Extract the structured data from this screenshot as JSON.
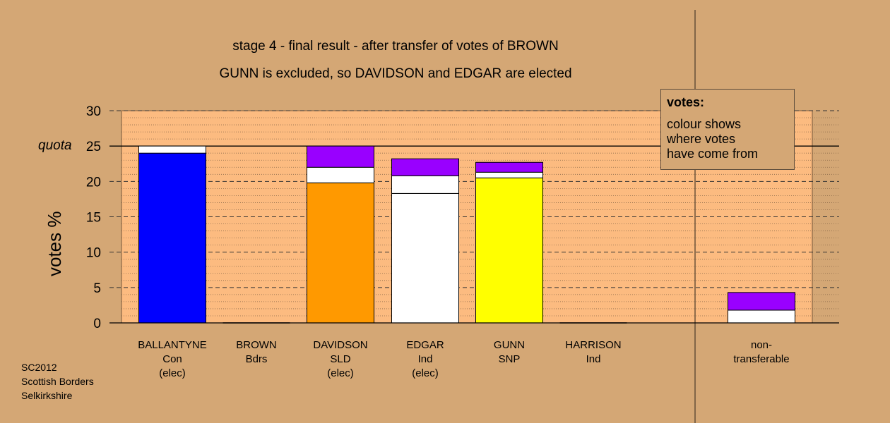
{
  "titles": {
    "line1": "stage 4 - final result - after transfer of votes of BROWN",
    "line2": "GUNN is excluded, so DAVIDSON and EDGAR are elected"
  },
  "legend": {
    "heading": "votes:",
    "text_lines": [
      "colour shows",
      "where votes",
      "have come from"
    ]
  },
  "source": [
    "SC2012",
    "Scottish Borders",
    "Selkirkshire"
  ],
  "colors": {
    "background": "#D4A775",
    "plot_background": "#FCBB80",
    "con": "#0000FF",
    "sld": "#FF9900",
    "ind": "#FFFFFF",
    "snp": "#FFFF00",
    "transfer_previous": "#FFFFFF",
    "transfer_brown": "#9900FF"
  },
  "chart_data": {
    "type": "bar",
    "stacked": true,
    "ylabel": "votes %",
    "ylim": [
      0,
      30
    ],
    "yticks": [
      0,
      5,
      10,
      15,
      20,
      25,
      30
    ],
    "quota": {
      "value": 25,
      "label": "quota"
    },
    "categories": [
      {
        "lines": [
          "BALLANTYNE",
          "Con",
          "(elec)"
        ]
      },
      {
        "lines": [
          "BROWN",
          "Bdrs"
        ]
      },
      {
        "lines": [
          "DAVIDSON",
          "SLD",
          "(elec)"
        ]
      },
      {
        "lines": [
          "EDGAR",
          "Ind",
          "(elec)"
        ]
      },
      {
        "lines": [
          "GUNN",
          "SNP"
        ]
      },
      {
        "lines": [
          "HARRISON",
          "Ind"
        ]
      },
      {
        "lines": [
          "non-",
          "transferable"
        ]
      }
    ],
    "bars": [
      {
        "category": "BALLANTYNE",
        "segments": [
          {
            "value": 24.0,
            "color": "#0000FF"
          },
          {
            "value": 1.0,
            "color": "#FFFFFF"
          }
        ]
      },
      {
        "category": "BROWN",
        "segments": []
      },
      {
        "category": "DAVIDSON",
        "segments": [
          {
            "value": 19.8,
            "color": "#FF9900"
          },
          {
            "value": 2.2,
            "color": "#FFFFFF"
          },
          {
            "value": 3.0,
            "color": "#9900FF"
          }
        ]
      },
      {
        "category": "EDGAR",
        "segments": [
          {
            "value": 18.3,
            "color": "#FFFFFF"
          },
          {
            "value": 2.5,
            "color": "#FFFFFF"
          },
          {
            "value": 2.4,
            "color": "#9900FF"
          }
        ]
      },
      {
        "category": "GUNN",
        "segments": [
          {
            "value": 20.5,
            "color": "#FFFF00"
          },
          {
            "value": 0.8,
            "color": "#FFFFFF"
          },
          {
            "value": 1.4,
            "color": "#9900FF"
          }
        ]
      },
      {
        "category": "HARRISON",
        "segments": []
      },
      {
        "category": "non-transferable",
        "segments": [
          {
            "value": 1.8,
            "color": "#FFFFFF"
          },
          {
            "value": 2.5,
            "color": "#9900FF"
          }
        ]
      }
    ],
    "grid": true,
    "legend_position": "top-right"
  }
}
